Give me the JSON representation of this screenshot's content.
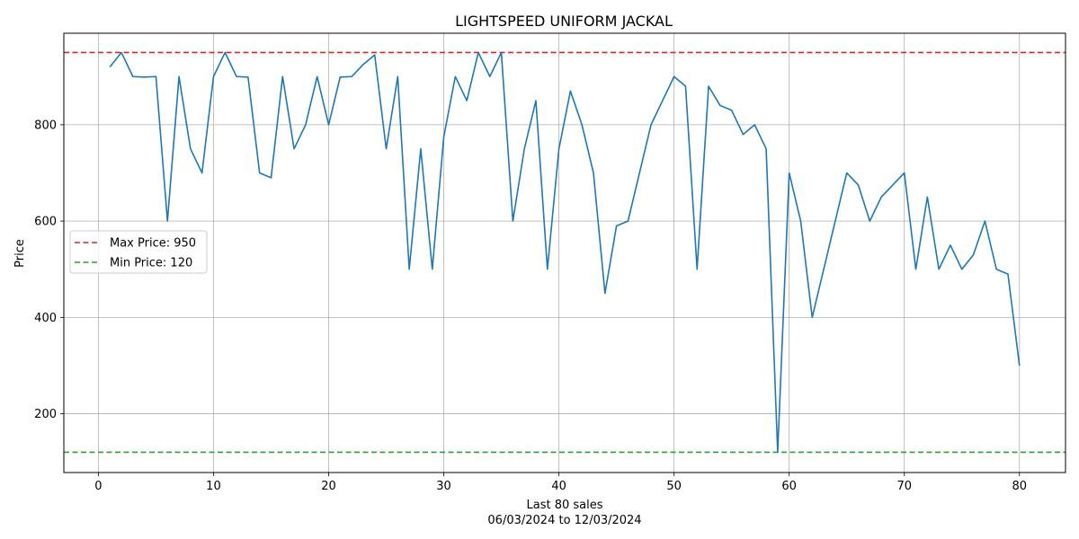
{
  "chart_data": {
    "type": "line",
    "title": "LIGHTSPEED UNIFORM JACKAL",
    "xlabel": "Last 80 sales",
    "xlabel_sub": "06/03/2024 to 12/03/2024",
    "ylabel": "Price",
    "xlim": [
      -3,
      84
    ],
    "ylim": [
      78,
      990
    ],
    "xticks": [
      0,
      10,
      20,
      30,
      40,
      50,
      60,
      70,
      80
    ],
    "yticks": [
      200,
      400,
      600,
      800
    ],
    "grid": true,
    "legend_position": "center-left",
    "series": [
      {
        "color": "#1f77b4",
        "x": [
          1,
          2,
          3,
          4,
          5,
          6,
          7,
          8,
          9,
          10,
          11,
          12,
          13,
          14,
          15,
          16,
          17,
          18,
          19,
          20,
          21,
          22,
          23,
          24,
          25,
          26,
          27,
          28,
          29,
          30,
          31,
          32,
          33,
          34,
          35,
          36,
          37,
          38,
          39,
          40,
          41,
          42,
          43,
          44,
          45,
          46,
          47,
          48,
          49,
          50,
          51,
          52,
          53,
          54,
          55,
          56,
          57,
          58,
          59,
          60,
          61,
          62,
          63,
          64,
          65,
          66,
          67,
          68,
          69,
          70,
          71,
          72,
          73,
          74,
          75,
          76,
          77,
          78,
          79,
          80
        ],
        "values": [
          920,
          950,
          900,
          899,
          900,
          600,
          900,
          750,
          700,
          900,
          950,
          900,
          899,
          700,
          690,
          900,
          750,
          800,
          900,
          800,
          899,
          900,
          925,
          945,
          750,
          900,
          500,
          750,
          500,
          775,
          900,
          850,
          950,
          900,
          950,
          600,
          750,
          850,
          500,
          750,
          870,
          800,
          700,
          450,
          590,
          600,
          700,
          800,
          850,
          900,
          880,
          500,
          880,
          840,
          830,
          780,
          800,
          750,
          120,
          700,
          600,
          400,
          500,
          600,
          700,
          675,
          600,
          650,
          675,
          700,
          500,
          650,
          500,
          550,
          500,
          530,
          600,
          500,
          490,
          300
        ]
      }
    ],
    "reference_lines": [
      {
        "name": "Max Price: 950",
        "value": 950,
        "color": "#d62728",
        "style": "dashed"
      },
      {
        "name": "Min Price: 120",
        "value": 120,
        "color": "#2ca02c",
        "style": "dashed"
      }
    ]
  }
}
